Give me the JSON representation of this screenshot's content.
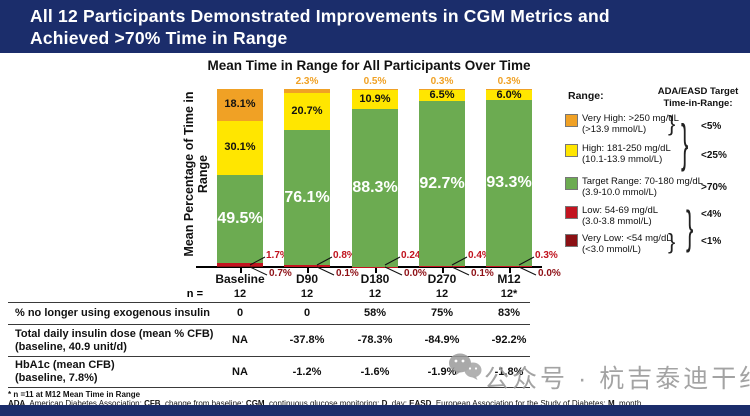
{
  "banner": {
    "title_line1": "All 12 Participants Demonstrated Improvements in CGM Metrics and",
    "title_line2": "Achieved >70% Time in Range"
  },
  "chart_data": {
    "type": "bar",
    "stacked": true,
    "title": "Mean Time in Range for All Participants Over Time",
    "ylabel": "Mean Percentage of Time in Range",
    "xlabel": "",
    "ylim": [
      0,
      100
    ],
    "grid": false,
    "categories": [
      "Baseline",
      "D90",
      "D180",
      "D270",
      "M12"
    ],
    "series": [
      {
        "role": "very_low",
        "name": "Very Low: <54 mg/dL",
        "color": "#8b1014",
        "values": [
          0.7,
          0.1,
          0.0,
          0.1,
          0.0
        ],
        "labels": [
          "0.7%",
          "0.1%",
          "0.0%",
          "0.1%",
          "0.0%"
        ]
      },
      {
        "role": "low",
        "name": "Low: 54-69 mg/dL",
        "color": "#c31420",
        "values": [
          1.7,
          0.8,
          0.24,
          0.4,
          0.3
        ],
        "labels": [
          "1.7%",
          "0.8%",
          "0.24%",
          "0.4%",
          "0.3%"
        ]
      },
      {
        "role": "target",
        "name": "Target Range: 70-180 mg/dL",
        "color": "#6cab51",
        "values": [
          49.5,
          76.1,
          88.3,
          92.7,
          93.3
        ],
        "labels": [
          "49.5%",
          "76.1%",
          "88.3%",
          "92.7%",
          "93.3%"
        ]
      },
      {
        "role": "high",
        "name": "High: 181-250 mg/dL",
        "color": "#ffe600",
        "values": [
          30.1,
          20.7,
          10.9,
          6.5,
          6.0
        ],
        "labels": [
          "30.1%",
          "20.7%",
          "10.9%",
          "6.5%",
          "6.0%"
        ]
      },
      {
        "role": "very_high",
        "name": "Very High: >250 mg/dL",
        "color": "#f0a125",
        "values": [
          18.1,
          2.3,
          0.5,
          0.3,
          0.3
        ],
        "labels": [
          "18.1%",
          "2.3%",
          "0.5%",
          "0.3%",
          "0.3%"
        ]
      }
    ],
    "legend_position": "right"
  },
  "legend": {
    "range_header": "Range:",
    "target_header_line1": "ADA/EASD Target",
    "target_header_line2": "Time-in-Range:",
    "items": [
      {
        "label_line1": "Very High: >250 mg/dL",
        "label_line2": "(>13.9 mmol/L)",
        "color": "#f0a125",
        "target": "<5%"
      },
      {
        "label_line1": "High: 181-250 mg/dL",
        "label_line2": "(10.1-13.9 mmol/L)",
        "color": "#ffe600",
        "target": "<25%"
      },
      {
        "label_line1": "Target Range: 70-180 mg/dL",
        "label_line2": "(3.9-10.0 mmol/L)",
        "color": "#6cab51",
        "target": ">70%"
      },
      {
        "label_line1": "Low: 54-69 mg/dL",
        "label_line2": "(3.0-3.8 mmol/L)",
        "color": "#c31420",
        "target": "<4%"
      },
      {
        "label_line1": "Very Low: <54 mg/dL",
        "label_line2": "(<3.0 mmol/L)",
        "color": "#8b1014",
        "target": "<1%"
      }
    ]
  },
  "table": {
    "n_label": "n =",
    "n_values": [
      "12",
      "12",
      "12",
      "12",
      "12*"
    ],
    "rows": [
      {
        "label_line1": "% no longer using exogenous insulin",
        "label_line2": "",
        "values": [
          "0",
          "0",
          "58%",
          "75%",
          "83%"
        ]
      },
      {
        "label_line1": "Total daily insulin dose (mean % CFB)",
        "label_line2": "(baseline, 40.9 unit/d)",
        "values": [
          "NA",
          "-37.8%",
          "-78.3%",
          "-84.9%",
          "-92.2%"
        ]
      },
      {
        "label_line1": "HbA1c (mean CFB)",
        "label_line2": "(baseline, 7.8%)",
        "values": [
          "NA",
          "-1.2%",
          "-1.6%",
          "-1.9%",
          "-1.8%"
        ]
      }
    ]
  },
  "footnotes": {
    "line1": "* n =11 at M12 Mean Time in Range",
    "line2_segments": [
      {
        "t": "ADA",
        "b": 1
      },
      {
        "t": ", American Diabetes Association;  ",
        "b": 0
      },
      {
        "t": "CFB",
        "b": 1
      },
      {
        "t": ", change from baseline; ",
        "b": 0
      },
      {
        "t": "CGM",
        "b": 1
      },
      {
        "t": ", continuous glucose monitoring; ",
        "b": 0
      },
      {
        "t": "D",
        "b": 1
      },
      {
        "t": ", day; ",
        "b": 0
      },
      {
        "t": "EASD",
        "b": 1
      },
      {
        "t": ", European Association for the Study of Diabetes; ",
        "b": 0
      },
      {
        "t": "M",
        "b": 1
      },
      {
        "t": ", month",
        "b": 0
      }
    ]
  },
  "watermark": {
    "text": "公众号 · 杭吉泰迪干细胞"
  },
  "colors": {
    "banner_bg": "#1b2d6b",
    "axis": "#000000",
    "callout_low_text": "#c0121d",
    "callout_very_low_text": "#8e1016",
    "above_bar_label": "#f0a125",
    "watermark_gray": "#969696"
  }
}
